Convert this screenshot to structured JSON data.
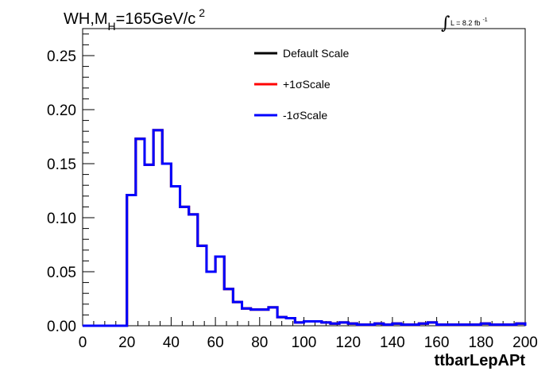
{
  "chart_data": {
    "type": "histogram",
    "title": {
      "main_a": "WH,M",
      "sub": "H",
      "main_b": "=165GeV/c",
      "sup": "2"
    },
    "lumi": {
      "integral": "∫",
      "text": "L = 8.2 fb",
      "sup": "-1"
    },
    "xlabel": "ttbarLepAPt",
    "ylabel": "",
    "xlim": [
      0,
      200
    ],
    "ylim": [
      0,
      0.275
    ],
    "x_ticks": [
      "0",
      "20",
      "40",
      "60",
      "80",
      "100",
      "120",
      "140",
      "160",
      "180",
      "200"
    ],
    "y_ticks": [
      "0.00",
      "0.05",
      "0.10",
      "0.15",
      "0.20",
      "0.25"
    ],
    "bin_width": 4,
    "legend": [
      {
        "label": "Default Scale",
        "color": "#000000"
      },
      {
        "label": "+1σScale",
        "color": "#ff0000"
      },
      {
        "label": "-1σScale",
        "color": "#0000ff"
      }
    ],
    "series": [
      {
        "name": "Default Scale",
        "color": "#000000",
        "values": [
          0,
          0,
          0,
          0,
          0,
          0.121,
          0.173,
          0.149,
          0.181,
          0.15,
          0.129,
          0.11,
          0.103,
          0.074,
          0.05,
          0.064,
          0.034,
          0.022,
          0.016,
          0.015,
          0.015,
          0.017,
          0.008,
          0.007,
          0.003,
          0.004,
          0.004,
          0.003,
          0.002,
          0.003,
          0.002,
          0.001,
          0.001,
          0.002,
          0.001,
          0.002,
          0.001,
          0.001,
          0.002,
          0.003,
          0.001,
          0.001,
          0.001,
          0.001,
          0.001,
          0.002,
          0.001,
          0.001,
          0.001,
          0.002
        ]
      },
      {
        "name": "+1σScale",
        "color": "#ff0000",
        "values": [
          0,
          0,
          0,
          0,
          0,
          0.121,
          0.173,
          0.149,
          0.181,
          0.15,
          0.129,
          0.11,
          0.103,
          0.074,
          0.05,
          0.064,
          0.034,
          0.022,
          0.016,
          0.015,
          0.015,
          0.017,
          0.008,
          0.007,
          0.003,
          0.004,
          0.004,
          0.003,
          0.002,
          0.003,
          0.002,
          0.001,
          0.001,
          0.002,
          0.001,
          0.002,
          0.001,
          0.001,
          0.002,
          0.003,
          0.001,
          0.001,
          0.001,
          0.001,
          0.001,
          0.002,
          0.001,
          0.001,
          0.001,
          0.002
        ]
      },
      {
        "name": "-1σScale",
        "color": "#0000ff",
        "values": [
          0,
          0,
          0,
          0,
          0,
          0.121,
          0.173,
          0.149,
          0.181,
          0.15,
          0.129,
          0.11,
          0.103,
          0.074,
          0.05,
          0.064,
          0.034,
          0.022,
          0.016,
          0.015,
          0.015,
          0.017,
          0.008,
          0.007,
          0.003,
          0.004,
          0.004,
          0.003,
          0.002,
          0.003,
          0.002,
          0.001,
          0.001,
          0.002,
          0.001,
          0.002,
          0.001,
          0.001,
          0.002,
          0.003,
          0.001,
          0.001,
          0.001,
          0.001,
          0.001,
          0.002,
          0.001,
          0.001,
          0.001,
          0.002
        ]
      }
    ],
    "grid": false,
    "legend_position": "top-center"
  }
}
